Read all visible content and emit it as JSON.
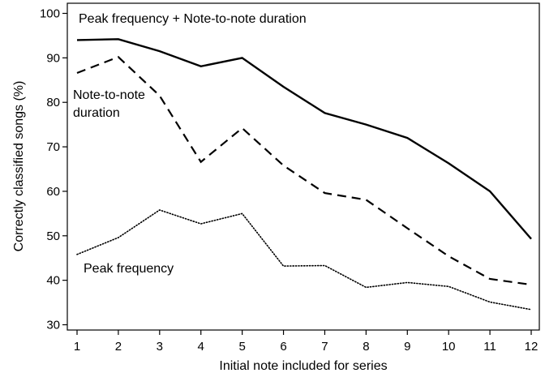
{
  "chart_data": {
    "type": "line",
    "title": "",
    "xlabel": "Initial note included for series",
    "ylabel": "Correctly classified songs (%)",
    "x": [
      1,
      2,
      3,
      4,
      5,
      6,
      7,
      8,
      9,
      10,
      11,
      12
    ],
    "xlim": [
      1,
      12
    ],
    "ylim": [
      30,
      100
    ],
    "yticks": [
      30,
      40,
      50,
      60,
      70,
      80,
      90,
      100
    ],
    "xticks": [
      1,
      2,
      3,
      4,
      5,
      6,
      7,
      8,
      9,
      10,
      11,
      12
    ],
    "grid": false,
    "legend": "none (series labelled directly on plot)",
    "series": [
      {
        "name": "Peak frequency + Note-to-note duration",
        "style": "solid",
        "color": "#000000",
        "values": [
          94,
          94.2,
          91.5,
          88.1,
          90,
          83.5,
          77.6,
          75,
          72,
          66.3,
          60,
          49.3
        ]
      },
      {
        "name": "Note-to-note duration",
        "style": "dashed",
        "color": "#000000",
        "values": [
          86.6,
          90.2,
          81.5,
          66.6,
          74.2,
          65.8,
          59.6,
          58.1,
          51.7,
          45.4,
          40.3,
          39
        ]
      },
      {
        "name": "Peak frequency",
        "style": "dotted",
        "color": "#000000",
        "values": [
          45.8,
          49.6,
          55.8,
          52.7,
          55,
          43.2,
          43.3,
          38.4,
          39.5,
          38.6,
          35.1,
          33.4
        ]
      }
    ],
    "annotations": {
      "combined": "Peak frequency + Note-to-note duration",
      "duration_line1": "Note-to-note",
      "duration_line2": "duration",
      "peak": "Peak frequency"
    }
  }
}
